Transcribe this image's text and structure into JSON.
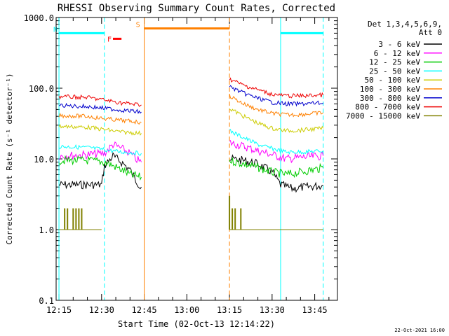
{
  "chart_data": {
    "type": "line",
    "title": "RHESSI Observing Summary Count Rates, Corrected",
    "xlabel": "Start Time (02-Oct-13 12:14:22)",
    "ylabel": "Corrected Count Rate (s⁻¹ detector⁻¹)",
    "yscale": "log",
    "ylim": [
      0.1,
      1000
    ],
    "xlim": [
      "12:14",
      "13:53"
    ],
    "x_ticks": [
      "12:15",
      "12:30",
      "12:45",
      "13:00",
      "13:15",
      "13:30",
      "13:45"
    ],
    "y_ticks": [
      "0.1",
      "1.0",
      "10.0",
      "100.0",
      "1000.0"
    ],
    "legend_header": [
      "Det 1,3,4,5,6,9,",
      "Att 0"
    ],
    "legend_position": "top-right",
    "footer_date": "22-Oct-2021 16:00",
    "flags": {
      "night": {
        "label": "N",
        "color": "#00ffff",
        "intervals": [
          [
            "12:15",
            "12:31"
          ],
          [
            "13:33",
            "13:48"
          ]
        ],
        "level": 600
      },
      "flare": {
        "label": "F",
        "color": "#ff0000",
        "intervals": [
          [
            "12:34",
            "12:37"
          ]
        ],
        "level": 500
      },
      "saa": {
        "label": "S",
        "color": "#ff8000",
        "intervals": [
          [
            "12:45",
            "13:15"
          ]
        ],
        "level": 700
      }
    },
    "vertical_markers": [
      {
        "time": "12:15",
        "color": "#00ffff",
        "style": "solid"
      },
      {
        "time": "12:31",
        "color": "#00ffff",
        "style": "dashed"
      },
      {
        "time": "12:45",
        "color": "#ff8000",
        "style": "solid"
      },
      {
        "time": "13:15",
        "color": "#ff8000",
        "style": "dashed"
      },
      {
        "time": "13:33",
        "color": "#00ffff",
        "style": "solid"
      },
      {
        "time": "13:48",
        "color": "#00ffff",
        "style": "dashed"
      }
    ],
    "series": [
      {
        "name": "3 - 6 keV",
        "color": "#000000",
        "segments": [
          {
            "x": [
              "12:15",
              "12:30",
              "12:31",
              "12:34",
              "12:37",
              "12:40",
              "12:42",
              "12:44"
            ],
            "y": [
              4.3,
              4.3,
              8,
              11,
              9,
              7,
              5,
              4
            ]
          },
          {
            "x": [
              "13:15",
              "13:20",
              "13:25",
              "13:30",
              "13:33",
              "13:37",
              "13:42",
              "13:48"
            ],
            "y": [
              10,
              9.5,
              8.5,
              6.5,
              4.3,
              3.8,
              4,
              4.2
            ]
          }
        ]
      },
      {
        "name": "6 - 12 keV",
        "color": "#ff00ff",
        "segments": [
          {
            "x": [
              "12:15",
              "12:25",
              "12:31",
              "12:34",
              "12:37",
              "12:40",
              "12:42",
              "12:44"
            ],
            "y": [
              11,
              11.5,
              12,
              16,
              14,
              12,
              10,
              9
            ]
          },
          {
            "x": [
              "13:15",
              "13:20",
              "13:25",
              "13:30",
              "13:35",
              "13:40",
              "13:48"
            ],
            "y": [
              17,
              15,
              13,
              11.5,
              10,
              10.5,
              11
            ]
          }
        ]
      },
      {
        "name": "12 - 25 keV",
        "color": "#00cc00",
        "segments": [
          {
            "x": [
              "12:15",
              "12:25",
              "12:31",
              "12:34",
              "12:37",
              "12:40",
              "12:44"
            ],
            "y": [
              9.5,
              9.5,
              9,
              8,
              7,
              6,
              5.5
            ]
          },
          {
            "x": [
              "13:15",
              "13:20",
              "13:25",
              "13:30",
              "13:35",
              "13:40",
              "13:48"
            ],
            "y": [
              9.5,
              8.5,
              7.5,
              6.5,
              6,
              6.5,
              7.5
            ]
          }
        ]
      },
      {
        "name": "25 - 50 keV",
        "color": "#00ffff",
        "segments": [
          {
            "x": [
              "12:15",
              "12:25",
              "12:31",
              "12:37",
              "12:44"
            ],
            "y": [
              15,
              14.5,
              13.5,
              12.5,
              12
            ]
          },
          {
            "x": [
              "13:15",
              "13:20",
              "13:25",
              "13:30",
              "13:35",
              "13:40",
              "13:48"
            ],
            "y": [
              25,
              20,
              16,
              14,
              12.5,
              12.5,
              13
            ]
          }
        ]
      },
      {
        "name": "50 - 100 keV",
        "color": "#cccc00",
        "segments": [
          {
            "x": [
              "12:15",
              "12:25",
              "12:31",
              "12:37",
              "12:44"
            ],
            "y": [
              29,
              28,
              26,
              24,
              23
            ]
          },
          {
            "x": [
              "13:15",
              "13:20",
              "13:25",
              "13:30",
              "13:35",
              "13:40",
              "13:48"
            ],
            "y": [
              52,
              40,
              32,
              27,
              25,
              25.5,
              27
            ]
          }
        ]
      },
      {
        "name": "100 - 300 keV",
        "color": "#ff8000",
        "segments": [
          {
            "x": [
              "12:15",
              "12:25",
              "12:31",
              "12:37",
              "12:44"
            ],
            "y": [
              41,
              40,
              37,
              35,
              33
            ]
          },
          {
            "x": [
              "13:15",
              "13:20",
              "13:25",
              "13:30",
              "13:35",
              "13:40",
              "13:48"
            ],
            "y": [
              78,
              60,
              50,
              44,
              42,
              42.5,
              45
            ]
          }
        ]
      },
      {
        "name": "300 - 800 keV",
        "color": "#0000cc",
        "segments": [
          {
            "x": [
              "12:15",
              "12:25",
              "12:31",
              "12:37",
              "12:44"
            ],
            "y": [
              57,
              55,
              52,
              49,
              46
            ]
          },
          {
            "x": [
              "13:15",
              "13:20",
              "13:25",
              "13:30",
              "13:35",
              "13:40",
              "13:48"
            ],
            "y": [
              105,
              85,
              72,
              63,
              60,
              60,
              62
            ]
          }
        ]
      },
      {
        "name": "800 - 7000 keV",
        "color": "#ee0000",
        "segments": [
          {
            "x": [
              "12:15",
              "12:25",
              "12:31",
              "12:37",
              "12:44"
            ],
            "y": [
              76,
              74,
              68,
              62,
              58
            ]
          },
          {
            "x": [
              "13:15",
              "13:20",
              "13:25",
              "13:30",
              "13:35",
              "13:40",
              "13:48"
            ],
            "y": [
              135,
              110,
              95,
              82,
              78,
              78,
              80
            ]
          }
        ]
      },
      {
        "name": "7000 - 15000 keV",
        "color": "#808000",
        "segments": [
          {
            "x": [
              "12:15",
              "12:30"
            ],
            "y": [
              1.0,
              1.0
            ]
          },
          {
            "x": [
              "13:15",
              "13:48"
            ],
            "y": [
              1.0,
              1.0
            ]
          }
        ],
        "bursts": [
          {
            "x": [
              "12:17",
              "12:18",
              "12:20",
              "12:21",
              "12:22",
              "12:23"
            ],
            "y": [
              2.0,
              2.0,
              2.0,
              2.0,
              2.0,
              2.0
            ]
          },
          {
            "x": [
              "13:15",
              "13:16",
              "13:17",
              "13:19"
            ],
            "y": [
              3.0,
              2.0,
              2.0,
              2.0
            ]
          }
        ]
      }
    ]
  }
}
